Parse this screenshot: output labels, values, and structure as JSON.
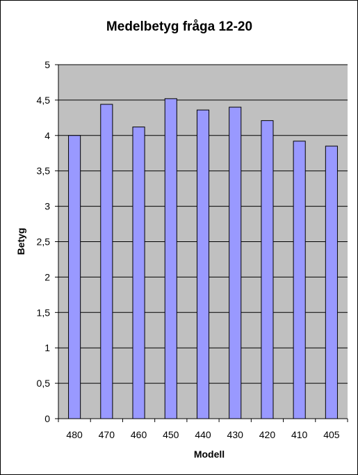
{
  "chart_data": {
    "type": "bar",
    "title": "Medelbetyg fråga 12-20",
    "xlabel": "Modell",
    "ylabel": "Betyg",
    "categories": [
      "480",
      "470",
      "460",
      "450",
      "440",
      "430",
      "420",
      "410",
      "405"
    ],
    "series": [
      {
        "values": [
          4.0,
          4.44,
          4.12,
          4.52,
          4.36,
          4.4,
          4.21,
          3.92,
          3.85
        ]
      }
    ],
    "ylim": [
      0,
      5
    ],
    "yticks": [
      "0",
      "0,5",
      "1",
      "1,5",
      "2",
      "2,5",
      "3",
      "3,5",
      "4",
      "4,5",
      "5"
    ],
    "grid": true,
    "legend": "none",
    "colors": {
      "plot_background": "#c0c0c0",
      "bar_fill": "#9999ff",
      "bar_stroke": "#000000",
      "gridline": "#000000"
    }
  }
}
